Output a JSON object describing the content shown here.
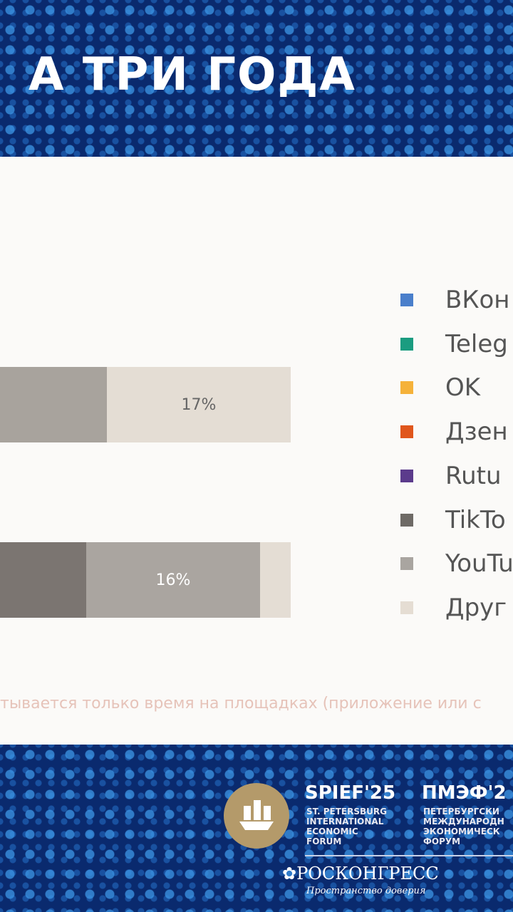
{
  "title": "А ТРИ ГОДА",
  "bars": [
    {
      "label": "17%"
    },
    {
      "label": "16%"
    }
  ],
  "legend": [
    "ВКон",
    "Teleg",
    "OK",
    "Дзен",
    "Rutu",
    "TikTo",
    "YouTu",
    "Друг"
  ],
  "footnote": "тывается только время на площадках (приложение или с",
  "logo": {
    "spief": "SPIEF'25",
    "spief_lines": [
      "ST. PETERSBURG",
      "INTERNATIONAL",
      "ECONOMIC",
      "FORUM"
    ],
    "pmef": "ПМЭФ'2",
    "pmef_lines": [
      "ПЕТЕРБУРГСКИ",
      "МЕЖДУНАРОДН",
      "ЭКОНОМИЧЕСК",
      "ФОРУМ"
    ],
    "roscongress": "РОСКОНГРЕСС",
    "tagline": "Пространство доверия"
  }
}
